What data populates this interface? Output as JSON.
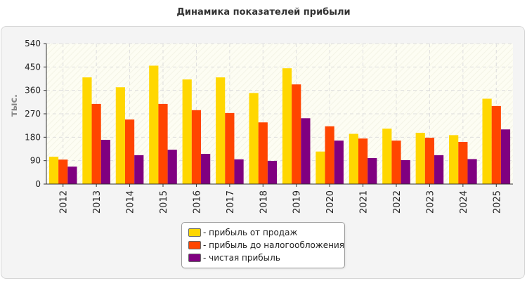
{
  "colors": {
    "series1": "#ffd700",
    "series2": "#ff4500",
    "series3": "#800080"
  },
  "chart_data": {
    "type": "bar",
    "title": "Динамика показателей прибыли",
    "xlabel": "",
    "ylabel": "тыс.",
    "ylim": [
      0,
      540
    ],
    "yticks": [
      "0",
      "90",
      "180",
      "270",
      "360",
      "450",
      "540"
    ],
    "grid": true,
    "legend_position": "bottom",
    "categories": [
      "2012",
      "2013",
      "2014",
      "2015",
      "2016",
      "2017",
      "2018",
      "2019",
      "2020",
      "2021",
      "2022",
      "2023",
      "2024",
      "2025"
    ],
    "series": [
      {
        "name": "- прибыль от продаж",
        "values": [
          105,
          410,
          372,
          455,
          402,
          410,
          350,
          445,
          125,
          193,
          213,
          197,
          188,
          328
        ]
      },
      {
        "name": "- прибыль до налогообложения",
        "values": [
          94,
          308,
          248,
          308,
          284,
          273,
          237,
          383,
          222,
          175,
          167,
          178,
          162,
          300
        ]
      },
      {
        "name": "- чистая прибыль",
        "values": [
          67,
          170,
          111,
          132,
          116,
          95,
          89,
          253,
          167,
          100,
          92,
          111,
          96,
          210
        ]
      }
    ]
  }
}
